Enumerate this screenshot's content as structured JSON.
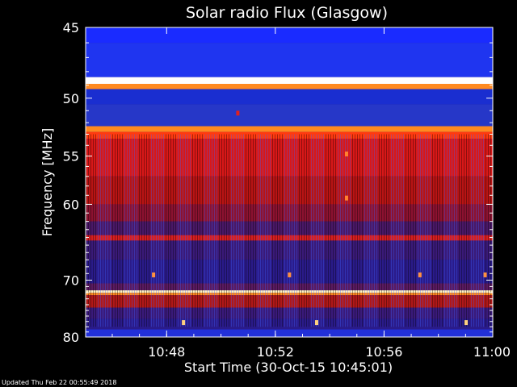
{
  "chart_data": {
    "type": "heatmap",
    "title": "Solar radio Flux (Glasgow)",
    "xlabel": "Start Time (30-Oct-15 10:45:01)",
    "ylabel": "Frequency [MHz]",
    "x_ticks": [
      "10:48",
      "10:52",
      "10:56",
      "11:00"
    ],
    "x_tick_minutes": [
      2.98,
      6.98,
      10.98,
      14.98
    ],
    "xlim_minutes_after_start": [
      0,
      14.98
    ],
    "y_ticks": [
      45,
      50,
      55,
      60,
      70,
      80
    ],
    "ylim": [
      45,
      80
    ],
    "y_scale": "reciprocal",
    "colors": {
      "background_band": "#2a1b8a",
      "bright_band": "#ff8a20",
      "red_region": "#d81818",
      "blue_top": "#1a2bff"
    },
    "bright_bands_mhz": [
      48.8,
      52.8,
      72.0
    ],
    "red_region_mhz": [
      52.8,
      62.0
    ],
    "notable_bands_mhz": [
      64.0,
      73.5
    ]
  },
  "footer": {
    "updated": "Updated Thu Feb 22 00:55:49 2018"
  }
}
